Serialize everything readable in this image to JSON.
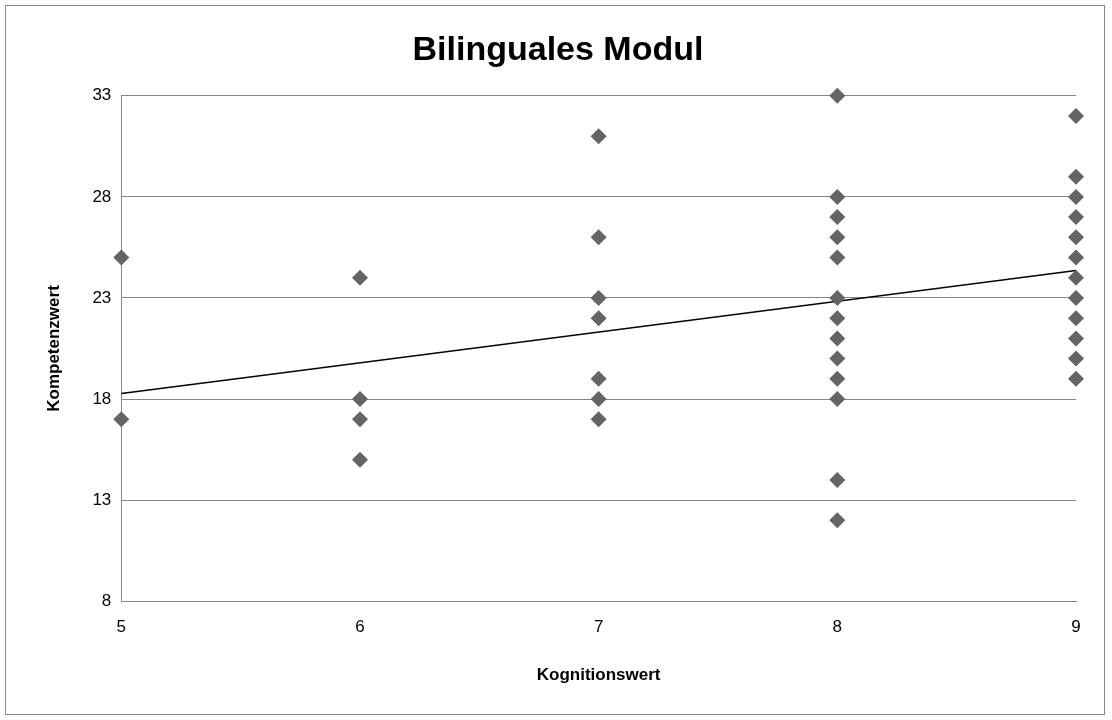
{
  "chart_data": {
    "type": "scatter",
    "title": "Bilinguales Modul",
    "xlabel": "Kognitionswert",
    "ylabel": "Kompetenzwert",
    "xlim": [
      5,
      9
    ],
    "xticks": [
      5,
      6,
      7,
      8,
      9
    ],
    "ylim": [
      8,
      33
    ],
    "yticks": [
      8,
      13,
      18,
      23,
      28,
      33
    ],
    "grid": "y",
    "legend": false,
    "marker": "diamond",
    "series": [
      {
        "type": "scatter",
        "color": "#646464",
        "x": [
          5,
          5,
          6,
          6,
          6,
          6,
          7,
          7,
          7,
          7,
          7,
          7,
          7,
          8,
          8,
          8,
          8,
          8,
          8,
          8,
          8,
          8,
          8,
          8,
          8,
          8,
          9,
          9,
          9,
          9,
          9,
          9,
          9,
          9,
          9,
          9,
          9,
          9
        ],
        "values": [
          25,
          17,
          24,
          18,
          17,
          15,
          31,
          26,
          23,
          22,
          19,
          18,
          17,
          33,
          28,
          27,
          26,
          25,
          23,
          22,
          21,
          20,
          19,
          18,
          14,
          12,
          32,
          29,
          28,
          27,
          26,
          25,
          24,
          23,
          22,
          21,
          20,
          19
        ]
      },
      {
        "type": "line",
        "color": "#000000",
        "marker": "none",
        "x": [
          5,
          9
        ],
        "values": [
          18.27,
          24.36
        ]
      }
    ]
  }
}
